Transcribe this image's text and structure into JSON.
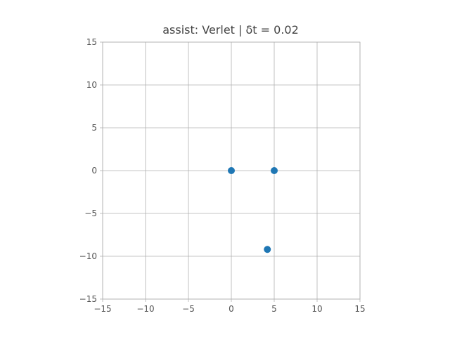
{
  "chart_data": {
    "type": "scatter",
    "title": "assist: Verlet | δt = 0.02",
    "xlabel": "",
    "ylabel": "",
    "xlim": [
      -15,
      15
    ],
    "ylim": [
      -15,
      15
    ],
    "grid": true,
    "x_ticks": [
      -15,
      -10,
      -5,
      0,
      5,
      10,
      15
    ],
    "y_ticks": [
      -15,
      -10,
      -5,
      0,
      5,
      10,
      15
    ],
    "x_tick_labels": [
      "−15",
      "−10",
      "−5",
      "0",
      "5",
      "10",
      "15"
    ],
    "y_tick_labels": [
      "−15",
      "−10",
      "−5",
      "0",
      "5",
      "10",
      "15"
    ],
    "marker_color": "#1f77b4",
    "points": [
      {
        "x": 0,
        "y": 0
      },
      {
        "x": 5,
        "y": 0
      },
      {
        "x": 4.2,
        "y": -9.2
      }
    ]
  }
}
